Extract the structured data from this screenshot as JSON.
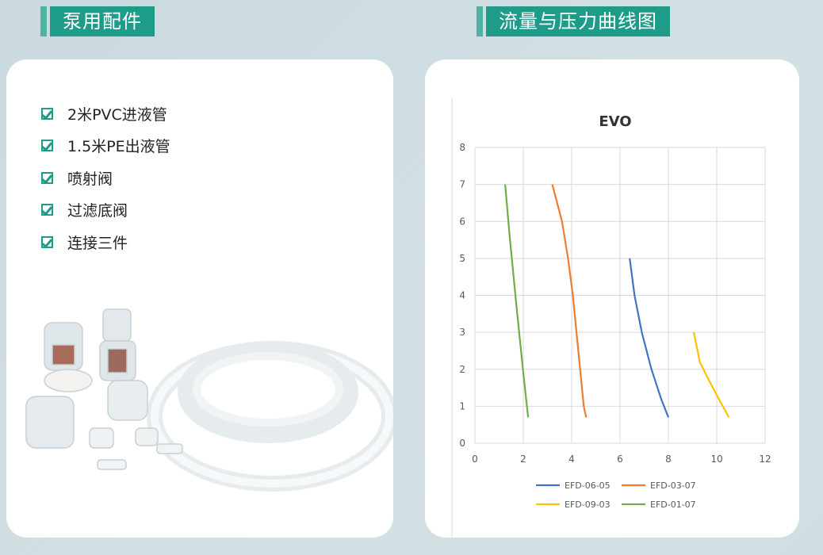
{
  "left": {
    "title": "泵用配件",
    "items": [
      "2米PVC进液管",
      "1.5米PE出液管",
      "喷射阀",
      "过滤底阀",
      "连接三件"
    ]
  },
  "right": {
    "title": "流量与压力曲线图"
  },
  "colors": {
    "accent": "#1f9b8a",
    "blue": "#4472c4",
    "orange": "#ed7d31",
    "yellow": "#ffc000",
    "green": "#70ad47"
  },
  "chart_data": {
    "type": "line",
    "title": "EVO",
    "xlim": [
      0,
      12
    ],
    "ylim": [
      0,
      8
    ],
    "xticks": [
      "0",
      "2",
      "4",
      "6",
      "8",
      "10",
      "12"
    ],
    "yticks": [
      "0",
      "1",
      "2",
      "3",
      "4",
      "5",
      "6",
      "7",
      "8"
    ],
    "grid": true,
    "legend": "bottom",
    "series": [
      {
        "name": "EFD-06-05",
        "color": "#4472c4",
        "points": [
          [
            6.4,
            5
          ],
          [
            6.6,
            4
          ],
          [
            6.9,
            3
          ],
          [
            7.3,
            2
          ],
          [
            7.7,
            1.2
          ],
          [
            8.0,
            0.7
          ]
        ]
      },
      {
        "name": "EFD-03-07",
        "color": "#ed7d31",
        "points": [
          [
            3.2,
            7
          ],
          [
            3.6,
            6
          ],
          [
            3.85,
            5
          ],
          [
            4.05,
            4
          ],
          [
            4.2,
            3
          ],
          [
            4.35,
            2
          ],
          [
            4.5,
            1
          ],
          [
            4.6,
            0.7
          ]
        ]
      },
      {
        "name": "EFD-09-03",
        "color": "#ffc000",
        "points": [
          [
            9.05,
            3
          ],
          [
            9.3,
            2.2
          ],
          [
            9.6,
            1.8
          ],
          [
            10.0,
            1.3
          ],
          [
            10.5,
            0.7
          ]
        ]
      },
      {
        "name": "EFD-01-07",
        "color": "#70ad47",
        "points": [
          [
            1.25,
            7
          ],
          [
            1.45,
            5.5
          ],
          [
            1.75,
            3.5
          ],
          [
            2.0,
            1.9
          ],
          [
            2.2,
            0.7
          ]
        ]
      }
    ]
  }
}
